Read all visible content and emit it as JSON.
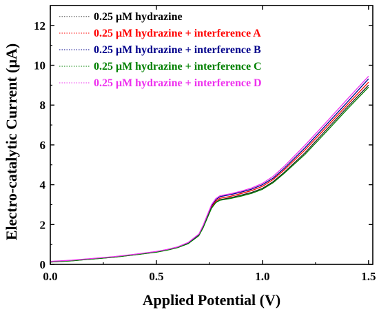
{
  "chart_data": {
    "type": "line",
    "title": "",
    "xlabel": "Applied Potential (V)",
    "ylabel": "Electro-catalytic Current (μA)",
    "xlim": [
      0.0,
      1.52
    ],
    "ylim": [
      0,
      13
    ],
    "xticks": [
      0.0,
      0.5,
      1.0,
      1.5
    ],
    "xtick_labels": [
      "0.0",
      "0.5",
      "1.0",
      "1.5"
    ],
    "yticks": [
      0,
      2,
      4,
      6,
      8,
      10,
      12
    ],
    "ytick_labels": [
      "0",
      "2",
      "4",
      "6",
      "8",
      "10",
      "12"
    ],
    "grid": false,
    "legend_position": "top-left",
    "x": [
      0.0,
      0.1,
      0.2,
      0.3,
      0.4,
      0.5,
      0.55,
      0.6,
      0.65,
      0.7,
      0.72,
      0.74,
      0.76,
      0.78,
      0.8,
      0.85,
      0.9,
      0.95,
      1.0,
      1.05,
      1.1,
      1.2,
      1.3,
      1.4,
      1.5
    ],
    "series": [
      {
        "name": "0.25 μM hydrazine",
        "color": "#222222",
        "values": [
          0.12,
          0.18,
          0.27,
          0.36,
          0.48,
          0.62,
          0.72,
          0.85,
          1.05,
          1.45,
          1.85,
          2.35,
          2.85,
          3.12,
          3.25,
          3.35,
          3.48,
          3.62,
          3.82,
          4.15,
          4.6,
          5.6,
          6.75,
          7.9,
          9.0
        ]
      },
      {
        "name": "0.25 μM hydrazine + interference A",
        "color": "#ff0000",
        "values": [
          0.13,
          0.19,
          0.28,
          0.37,
          0.49,
          0.63,
          0.73,
          0.86,
          1.07,
          1.47,
          1.88,
          2.4,
          2.9,
          3.18,
          3.32,
          3.42,
          3.56,
          3.71,
          3.92,
          4.26,
          4.72,
          5.74,
          6.88,
          8.02,
          9.15
        ]
      },
      {
        "name": "0.25 μM hydrazine + interference B",
        "color": "#00008b",
        "values": [
          0.14,
          0.2,
          0.29,
          0.38,
          0.5,
          0.64,
          0.74,
          0.87,
          1.08,
          1.5,
          1.92,
          2.45,
          2.95,
          3.25,
          3.4,
          3.5,
          3.63,
          3.78,
          4.0,
          4.33,
          4.8,
          5.85,
          7.0,
          8.15,
          9.32
        ]
      },
      {
        "name": "0.25 μM hydrazine + interference C",
        "color": "#008000",
        "values": [
          0.12,
          0.18,
          0.27,
          0.36,
          0.48,
          0.61,
          0.71,
          0.84,
          1.04,
          1.44,
          1.83,
          2.33,
          2.82,
          3.1,
          3.22,
          3.31,
          3.43,
          3.57,
          3.77,
          4.1,
          4.55,
          5.52,
          6.65,
          7.8,
          8.9
        ]
      },
      {
        "name": "0.25 μM hydrazine + interference D",
        "color": "#ee30ee",
        "values": [
          0.15,
          0.21,
          0.3,
          0.39,
          0.51,
          0.65,
          0.75,
          0.88,
          1.1,
          1.52,
          1.95,
          2.48,
          3.0,
          3.3,
          3.45,
          3.55,
          3.68,
          3.84,
          4.07,
          4.42,
          4.9,
          5.98,
          7.13,
          8.3,
          9.45
        ]
      }
    ]
  }
}
